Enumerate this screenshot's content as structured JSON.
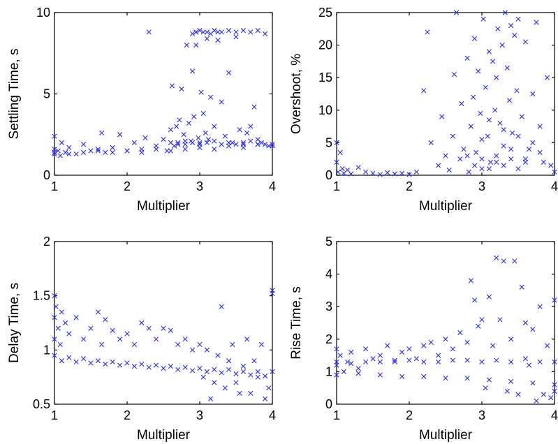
{
  "chart_data": [
    {
      "type": "scatter",
      "xlabel": "Multiplier",
      "ylabel": "Settling Time, s",
      "xlim": [
        1,
        4
      ],
      "ylim": [
        0,
        10
      ],
      "xticks": [
        "1",
        "2",
        "3",
        "4"
      ],
      "yticks": [
        "0",
        "5",
        "10"
      ],
      "grid": false,
      "marker": "x",
      "color": "#2a2af0",
      "series": [
        {
          "x": [
            1.0,
            1.0,
            1.0,
            1.05,
            1.08,
            1.1,
            1.15,
            1.2,
            1.3,
            1.4,
            1.5,
            1.6,
            1.65,
            1.7,
            1.8,
            1.9,
            2.0,
            2.1,
            2.2,
            2.25,
            2.3,
            2.4,
            2.5,
            2.55,
            2.6,
            2.62,
            2.65,
            2.68,
            2.7,
            2.72,
            2.75,
            2.78,
            2.8,
            2.82,
            2.85,
            2.88,
            2.9,
            2.92,
            2.95,
            2.98,
            3.0,
            3.02,
            3.05,
            3.08,
            3.1,
            3.12,
            3.15,
            3.2,
            3.25,
            3.3,
            3.35,
            3.4,
            3.45,
            3.5,
            3.55,
            3.6,
            3.65,
            3.7,
            3.75,
            3.8,
            3.85,
            3.9,
            3.95,
            4.0,
            2.95,
            3.0,
            3.1,
            3.2,
            3.3,
            3.4,
            3.5,
            3.6,
            3.7,
            3.8,
            3.9,
            2.9,
            2.95,
            3.05,
            3.15,
            3.25,
            2.6,
            2.7,
            2.8,
            2.9,
            3.0,
            3.1,
            3.2,
            3.3,
            3.4,
            3.5,
            3.6,
            3.7,
            3.8,
            1.0,
            1.2,
            1.4,
            1.6,
            1.8,
            2.0,
            2.2,
            2.4,
            2.6,
            2.8,
            3.0,
            3.2,
            3.4,
            3.6,
            3.8,
            4.0
          ],
          "y": [
            1.3,
            1.6,
            2.4,
            1.5,
            1.2,
            2.0,
            1.4,
            1.7,
            1.3,
            1.9,
            1.5,
            1.6,
            2.6,
            1.4,
            1.7,
            2.5,
            1.5,
            2.0,
            1.6,
            2.3,
            8.8,
            1.8,
            2.2,
            1.5,
            2.8,
            5.5,
            1.8,
            3.0,
            2.0,
            3.4,
            5.3,
            2.5,
            1.9,
            8.0,
            3.2,
            2.1,
            6.4,
            3.6,
            8.0,
            2.3,
            2.0,
            5.1,
            3.8,
            2.6,
            8.4,
            2.2,
            4.8,
            3.0,
            8.3,
            4.5,
            2.4,
            6.3,
            2.0,
            8.5,
            2.8,
            1.9,
            2.6,
            3.0,
            4.2,
            2.2,
            2.0,
            1.9,
            1.8,
            1.9,
            8.8,
            8.9,
            8.8,
            8.9,
            8.8,
            8.9,
            8.8,
            8.9,
            8.8,
            8.9,
            8.7,
            8.7,
            8.8,
            8.8,
            8.7,
            8.8,
            2.0,
            1.9,
            2.1,
            2.0,
            1.9,
            2.0,
            2.1,
            1.9,
            2.0,
            1.9,
            2.0,
            2.1,
            1.9,
            1.4,
            1.3,
            1.4,
            1.5,
            1.4,
            1.5,
            1.4,
            1.6,
            1.5,
            1.6,
            1.7,
            1.6,
            1.8,
            1.7,
            1.9,
            1.8
          ]
        }
      ]
    },
    {
      "type": "scatter",
      "xlabel": "Multiplier",
      "ylabel": "Overshoot, %",
      "xlim": [
        1,
        4
      ],
      "ylim": [
        0,
        25
      ],
      "xticks": [
        "1",
        "2",
        "3",
        "4"
      ],
      "yticks": [
        "0",
        "5",
        "10",
        "15",
        "20",
        "25"
      ],
      "grid": false,
      "marker": "x",
      "color": "#2a2af0",
      "series": [
        {
          "x": [
            1.0,
            1.0,
            1.02,
            1.05,
            1.08,
            1.1,
            1.15,
            1.2,
            1.3,
            1.4,
            1.5,
            1.6,
            1.7,
            1.8,
            1.9,
            2.0,
            2.1,
            2.2,
            2.25,
            2.3,
            2.4,
            2.45,
            2.5,
            2.55,
            2.6,
            2.62,
            2.65,
            2.7,
            2.72,
            2.75,
            2.8,
            2.82,
            2.85,
            2.88,
            2.9,
            2.92,
            2.95,
            2.98,
            3.0,
            3.02,
            3.05,
            3.08,
            3.1,
            3.12,
            3.15,
            3.18,
            3.2,
            3.22,
            3.25,
            3.28,
            3.3,
            3.32,
            3.35,
            3.38,
            3.4,
            3.42,
            3.45,
            3.48,
            3.5,
            3.55,
            3.6,
            3.65,
            3.7,
            3.75,
            3.8,
            3.85,
            3.9,
            3.95,
            4.0,
            3.0,
            3.1,
            3.2,
            3.3,
            3.4,
            3.5,
            3.6,
            3.7,
            3.8,
            2.8,
            2.9,
            3.0,
            3.1,
            3.2,
            3.3,
            3.4,
            3.5,
            3.6
          ],
          "y": [
            5.0,
            2.0,
            0.5,
            3.5,
            1.0,
            0.3,
            0.8,
            0.2,
            1.2,
            0.5,
            0.3,
            0.1,
            0.4,
            0.2,
            0.3,
            0.1,
            0.5,
            13.0,
            22.0,
            5.0,
            1.5,
            9.0,
            3.0,
            0.8,
            6.0,
            15.5,
            25.0,
            2.5,
            11.0,
            4.0,
            18.0,
            0.5,
            7.5,
            12.0,
            21.0,
            3.5,
            16.0,
            9.5,
            1.0,
            24.0,
            13.5,
            6.0,
            19.0,
            2.0,
            17.5,
            10.0,
            15.0,
            22.5,
            8.0,
            20.0,
            4.5,
            25.0,
            16.5,
            11.5,
            23.0,
            6.5,
            21.5,
            13.0,
            24.0,
            9.0,
            20.5,
            4.0,
            12.5,
            23.5,
            7.5,
            2.0,
            15.0,
            1.5,
            0.5,
            5.5,
            8.5,
            3.0,
            7.0,
            4.0,
            6.0,
            2.5,
            5.0,
            3.5,
            3.0,
            1.5,
            2.5,
            1.0,
            2.0,
            1.5,
            2.5,
            1.0,
            2.0
          ]
        }
      ]
    },
    {
      "type": "scatter",
      "xlabel": "Multiplier",
      "ylabel": "Delay Time, s",
      "xlim": [
        1,
        4
      ],
      "ylim": [
        0.5,
        2
      ],
      "xticks": [
        "1",
        "2",
        "3",
        "4"
      ],
      "yticks": [
        "0.5",
        "1",
        "1.5",
        "2"
      ],
      "grid": false,
      "marker": "x",
      "color": "#2a2af0",
      "series": [
        {
          "x": [
            1.0,
            1.0,
            1.0,
            1.02,
            1.05,
            1.08,
            1.1,
            1.15,
            1.2,
            1.3,
            1.4,
            1.5,
            1.6,
            1.65,
            1.7,
            1.8,
            1.9,
            2.0,
            2.1,
            2.2,
            2.3,
            2.4,
            2.5,
            2.6,
            2.7,
            2.8,
            2.9,
            3.0,
            3.05,
            3.1,
            3.15,
            3.2,
            3.25,
            3.3,
            3.35,
            3.4,
            3.45,
            3.5,
            3.55,
            3.6,
            3.65,
            3.7,
            3.75,
            3.8,
            3.85,
            3.9,
            3.95,
            4.0,
            4.0,
            1.0,
            1.2,
            1.4,
            1.6,
            1.8,
            2.0,
            2.2,
            2.4,
            2.6,
            2.8,
            3.0,
            3.2,
            3.4,
            3.6,
            3.8,
            4.0,
            1.1,
            1.3,
            1.5,
            1.7,
            1.9,
            2.1,
            2.3,
            2.5,
            2.7,
            2.9,
            3.1,
            3.3,
            3.5,
            3.7,
            3.9
          ],
          "y": [
            1.5,
            1.3,
            1.1,
            1.4,
            1.2,
            1.05,
            1.35,
            1.25,
            1.15,
            1.3,
            1.1,
            1.2,
            1.35,
            1.05,
            1.28,
            1.18,
            1.1,
            1.15,
            1.05,
            1.25,
            1.2,
            1.1,
            1.2,
            1.18,
            1.05,
            1.1,
            1.0,
            1.05,
            0.75,
            1.0,
            0.55,
            0.7,
            0.95,
            1.4,
            0.65,
            0.9,
            1.05,
            0.7,
            0.6,
            0.85,
            1.1,
            0.6,
            0.9,
            0.75,
            1.05,
            0.55,
            0.65,
            1.55,
            1.52,
            0.95,
            0.93,
            0.92,
            0.9,
            0.89,
            0.88,
            0.87,
            0.86,
            0.85,
            0.84,
            0.83,
            0.82,
            0.82,
            0.8,
            0.8,
            0.8,
            0.9,
            0.89,
            0.88,
            0.87,
            0.86,
            0.85,
            0.84,
            0.83,
            0.82,
            0.81,
            0.8,
            0.79,
            0.78,
            0.77,
            0.76
          ]
        }
      ]
    },
    {
      "type": "scatter",
      "xlabel": "Multiplier",
      "ylabel": "Rise Time, s",
      "xlim": [
        1,
        4
      ],
      "ylim": [
        0,
        5
      ],
      "xticks": [
        "1",
        "2",
        "3",
        "4"
      ],
      "yticks": [
        "0",
        "1",
        "2",
        "3",
        "4",
        "5"
      ],
      "grid": false,
      "marker": "x",
      "color": "#2a2af0",
      "series": [
        {
          "x": [
            1.0,
            1.0,
            1.0,
            1.05,
            1.1,
            1.15,
            1.2,
            1.3,
            1.4,
            1.5,
            1.6,
            1.7,
            1.8,
            1.9,
            2.0,
            2.1,
            2.2,
            2.3,
            2.4,
            2.5,
            2.6,
            2.7,
            2.8,
            2.85,
            2.9,
            2.95,
            3.0,
            3.05,
            3.1,
            3.15,
            3.2,
            3.25,
            3.3,
            3.35,
            3.4,
            3.45,
            3.5,
            3.55,
            3.6,
            3.65,
            3.7,
            3.75,
            3.8,
            3.85,
            3.9,
            3.95,
            4.0,
            4.0,
            1.0,
            1.2,
            1.4,
            1.6,
            1.8,
            2.0,
            2.2,
            2.4,
            2.6,
            2.8,
            3.0,
            3.2,
            3.4,
            3.6,
            3.8,
            4.0,
            1.0,
            1.3,
            1.6,
            1.9,
            2.2,
            2.5,
            2.8,
            3.1,
            3.4,
            3.7,
            4.0
          ],
          "y": [
            1.7,
            1.2,
            0.9,
            1.5,
            1.0,
            1.3,
            1.6,
            1.1,
            1.7,
            1.4,
            1.5,
            1.8,
            1.3,
            1.6,
            1.7,
            1.4,
            1.8,
            1.9,
            1.5,
            2.0,
            1.7,
            2.2,
            1.9,
            3.8,
            3.2,
            2.4,
            2.6,
            0.5,
            3.3,
            1.8,
            4.5,
            2.6,
            4.4,
            0.4,
            2.0,
            4.4,
            0.3,
            3.6,
            2.5,
            1.2,
            2.3,
            0.1,
            3.0,
            0.3,
            1.8,
            0.2,
            3.2,
            0.4,
            1.3,
            1.25,
            1.3,
            1.3,
            1.35,
            1.35,
            1.3,
            1.3,
            1.35,
            1.35,
            1.3,
            1.35,
            1.3,
            1.4,
            1.3,
            1.3,
            0.9,
            0.95,
            0.9,
            0.85,
            0.85,
            0.8,
            0.8,
            0.75,
            0.7,
            0.65,
            0.6
          ]
        }
      ]
    }
  ]
}
